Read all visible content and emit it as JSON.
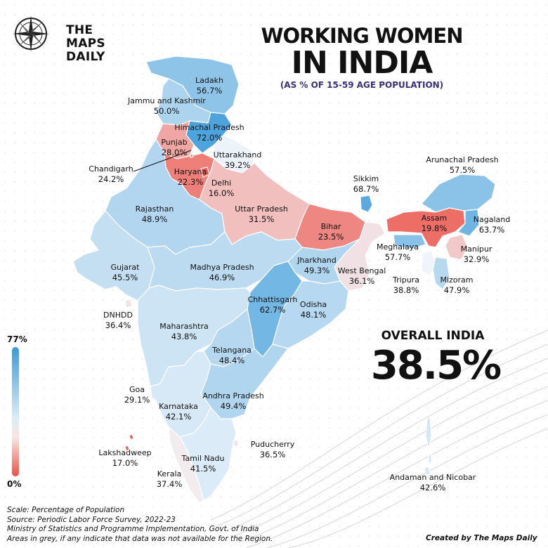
{
  "brand": {
    "name_line1": "THE",
    "name_line2": "MAPS",
    "name_line3": "DAILY"
  },
  "title": {
    "line1": "WORKING WOMEN",
    "line2": "IN INDIA",
    "subtitle": "(AS % OF 15-59 AGE POPULATION)"
  },
  "overall": {
    "label": "OVERALL INDIA",
    "value": "38.5%"
  },
  "scale": {
    "max_label": "77%",
    "min_label": "0%",
    "max": 77,
    "min": 0,
    "color_high": "#3a9ad9",
    "color_low": "#ec4f44",
    "color_mid": "#f3f7fb"
  },
  "regions": [
    {
      "id": "ladakh",
      "name": "Ladakh",
      "value": "56.7%"
    },
    {
      "id": "jk",
      "name": "Jammu and Kashmir",
      "value": "50.0%"
    },
    {
      "id": "hp",
      "name": "Himachal Pradesh",
      "value": "72.0%"
    },
    {
      "id": "punjab",
      "name": "Punjab",
      "value": "28.0%"
    },
    {
      "id": "uttarakhand",
      "name": "Uttarakhand",
      "value": "39.2%"
    },
    {
      "id": "chandigarh",
      "name": "Chandigarh",
      "value": "24.2%"
    },
    {
      "id": "haryana",
      "name": "Haryana",
      "value": "22.3%"
    },
    {
      "id": "delhi",
      "name": "Delhi",
      "value": "16.0%"
    },
    {
      "id": "rajasthan",
      "name": "Rajasthan",
      "value": "48.9%"
    },
    {
      "id": "up",
      "name": "Uttar Pradesh",
      "value": "31.5%"
    },
    {
      "id": "bihar",
      "name": "Bihar",
      "value": "23.5%"
    },
    {
      "id": "sikkim",
      "name": "Sikkim",
      "value": "68.7%"
    },
    {
      "id": "arunachal",
      "name": "Arunachal Pradesh",
      "value": "57.5%"
    },
    {
      "id": "assam",
      "name": "Assam",
      "value": "19.8%"
    },
    {
      "id": "nagaland",
      "name": "Nagaland",
      "value": "63.7%"
    },
    {
      "id": "meghalaya",
      "name": "Meghalaya",
      "value": "57.7%"
    },
    {
      "id": "manipur",
      "name": "Manipur",
      "value": "32.9%"
    },
    {
      "id": "tripura",
      "name": "Tripura",
      "value": "38.8%"
    },
    {
      "id": "mizoram",
      "name": "Mizoram",
      "value": "47.9%"
    },
    {
      "id": "gujarat",
      "name": "Gujarat",
      "value": "45.5%"
    },
    {
      "id": "mp",
      "name": "Madhya Pradesh",
      "value": "46.9%"
    },
    {
      "id": "jharkhand",
      "name": "Jharkhand",
      "value": "49.3%"
    },
    {
      "id": "wb",
      "name": "West Bengal",
      "value": "36.1%"
    },
    {
      "id": "chhattisgarh",
      "name": "Chhattisgarh",
      "value": "62.7%"
    },
    {
      "id": "odisha",
      "name": "Odisha",
      "value": "48.1%"
    },
    {
      "id": "dnhdd",
      "name": "DNHDD",
      "value": "36.4%"
    },
    {
      "id": "maharashtra",
      "name": "Maharashtra",
      "value": "43.8%"
    },
    {
      "id": "telangana",
      "name": "Telangana",
      "value": "48.4%"
    },
    {
      "id": "goa",
      "name": "Goa",
      "value": "29.1%"
    },
    {
      "id": "ap",
      "name": "Andhra Pradesh",
      "value": "49.4%"
    },
    {
      "id": "karnataka",
      "name": "Karnataka",
      "value": "42.1%"
    },
    {
      "id": "lakshadweep",
      "name": "Lakshadweep",
      "value": "17.0%"
    },
    {
      "id": "puducherry",
      "name": "Puducherry",
      "value": "36.5%"
    },
    {
      "id": "tn",
      "name": "Tamil Nadu",
      "value": "41.5%"
    },
    {
      "id": "kerala",
      "name": "Kerala",
      "value": "37.4%"
    },
    {
      "id": "andaman",
      "name": "Andaman and Nicobar",
      "value": "42.6%"
    }
  ],
  "footer": {
    "line1": "Scale: Percentage of Population",
    "line2": "Source: Periodic Labor Force Survey, 2022-23",
    "line3": "Ministry of Statistics and Programme Implementation, Govt. of India",
    "line4": "Areas in grey, if any indicate that data was not available for the Region."
  },
  "credit": "Created by The Maps Daily"
}
